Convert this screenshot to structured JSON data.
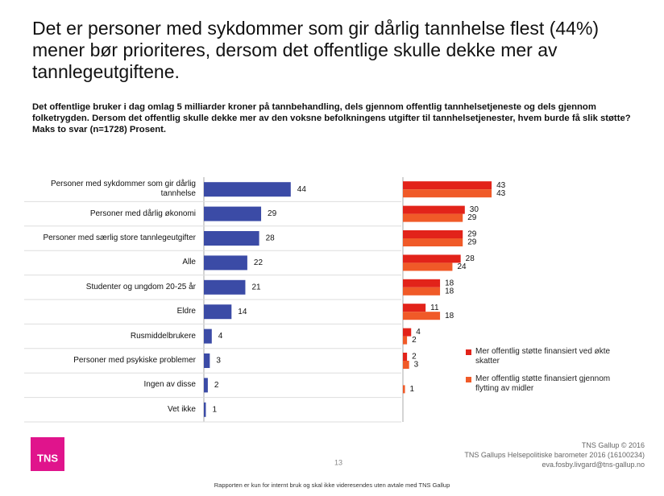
{
  "title": "Det er personer med sykdommer som gir dårlig tannhelse flest (44%) mener bør prioriteres, dersom det offentlige skulle dekke mer av tannlegeutgiftene.",
  "subtitle": "Det offentlige bruker i dag omlag 5 milliarder kroner på tannbehandling, dels gjennom offentlig tannhelsetjeneste og dels gjennom folketrygden. Dersom det offentlig skulle dekke mer av den voksne befolkningens utgifter til tannhelsetjenester, hvem burde få slik støtte? Maks to svar (n=1728) Prosent.",
  "logo": "TNS",
  "page_number": "13",
  "footer": [
    "TNS Gallup © 2016",
    "TNS Gallups Helsepolitiske barometer 2016 (16100234)",
    "eva.fosby.livgard@tns-gallup.no"
  ],
  "note": "Rapporten er kun for internt bruk og skal ikke videresendes uten avtale med TNS Gallup",
  "chart_data": [
    {
      "type": "hbar",
      "categories": [
        "Personer med sykdommer som gir dårlig tannhelse",
        "Personer med dårlig økonomi",
        "Personer med særlig store tannlegeutgifter",
        "Alle",
        "Studenter og ungdom 20-25 år",
        "Eldre",
        "Rusmiddelbrukere",
        "Personer med psykiske problemer",
        "Ingen av disse",
        "Vet ikke"
      ],
      "values": [
        44,
        29,
        28,
        22,
        21,
        14,
        4,
        3,
        2,
        1
      ],
      "color": "#3b4ba6",
      "xlim": [
        0,
        100
      ]
    },
    {
      "type": "grouped-hbar",
      "series": [
        {
          "name": "Mer offentlig støtte finansiert ved økte skatter",
          "color": "#e2231a",
          "values": [
            43,
            30,
            29,
            28,
            18,
            11,
            4,
            2,
            null,
            null
          ]
        },
        {
          "name": "Mer offentlig støtte finansiert gjennom flytting av midler",
          "color": "#f05a28",
          "values": [
            43,
            29,
            29,
            24,
            18,
            18,
            2,
            3,
            1,
            null
          ]
        }
      ],
      "xlim": [
        0,
        100
      ],
      "legend": "lower right"
    }
  ]
}
